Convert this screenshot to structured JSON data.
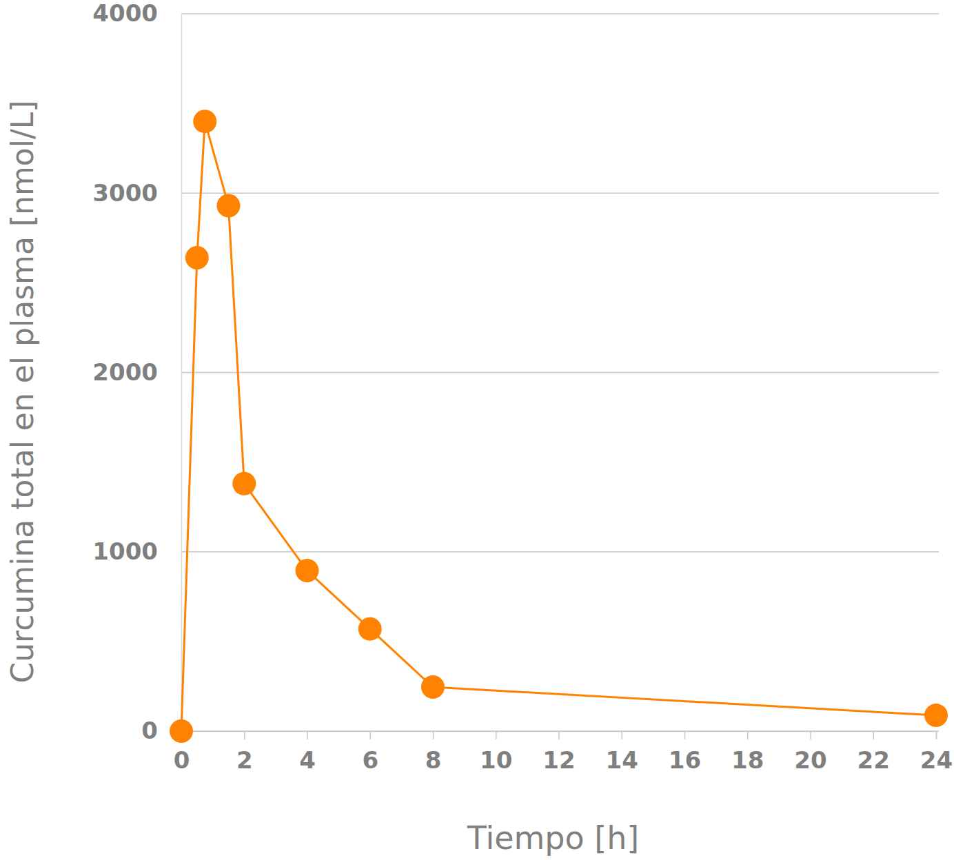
{
  "chart_data": {
    "type": "line",
    "xlabel": "Tiempo [h]",
    "ylabel": "Curcumina total en el plasma [nmol/L]",
    "x": [
      0,
      0.5,
      0.75,
      1.5,
      2,
      4,
      6,
      8,
      24
    ],
    "values": [
      0,
      2640,
      3400,
      2930,
      1380,
      895,
      570,
      246,
      88
    ],
    "color": "#ff8200",
    "marker": "circle",
    "xlim": [
      0,
      24
    ],
    "ylim": [
      0,
      4000
    ],
    "xticks": [
      0,
      2,
      4,
      6,
      8,
      10,
      12,
      14,
      16,
      18,
      20,
      22,
      24
    ],
    "yticks": [
      0,
      1000,
      2000,
      3000,
      4000
    ],
    "grid": true
  }
}
